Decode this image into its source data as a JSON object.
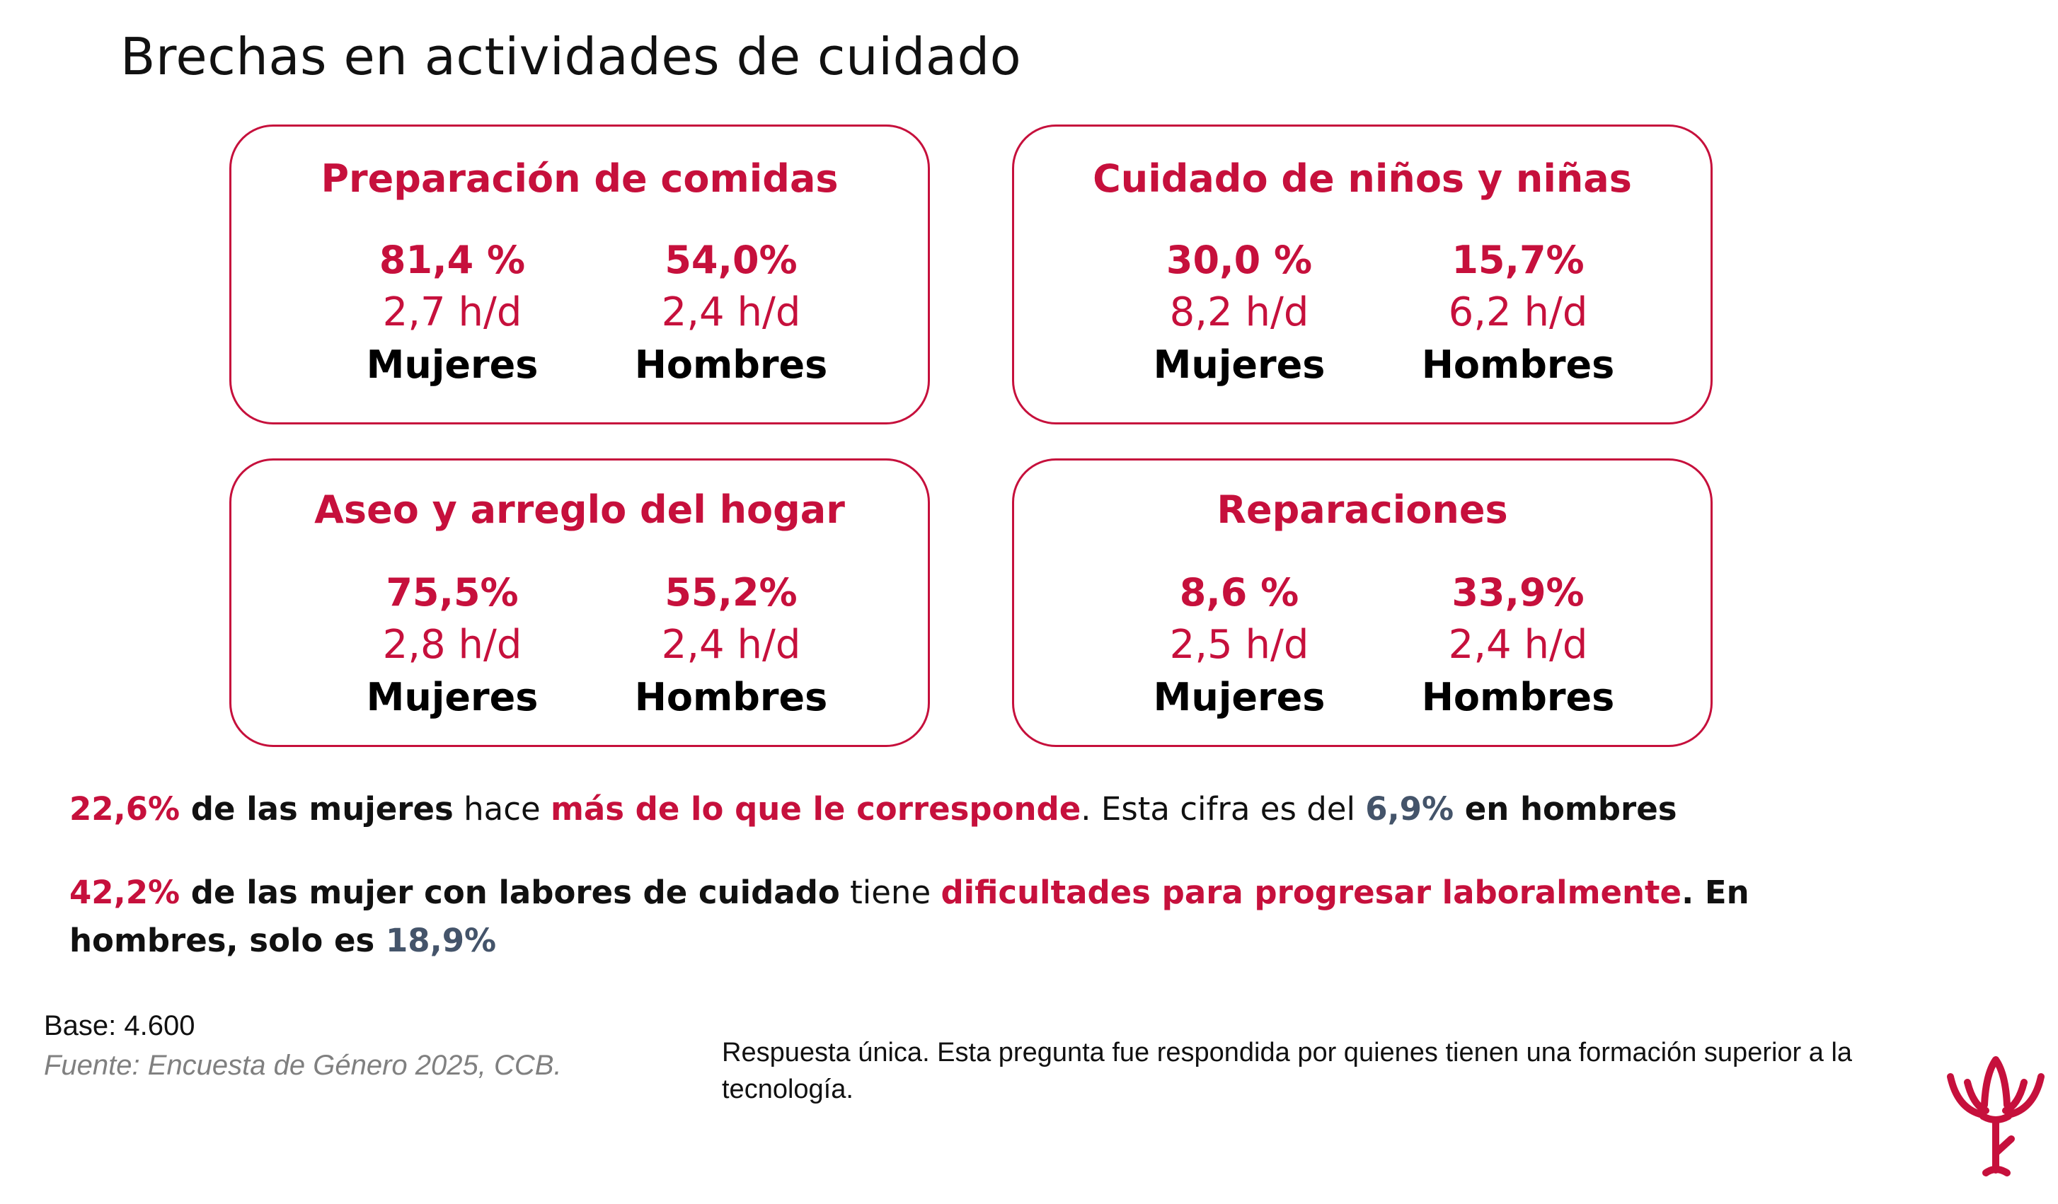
{
  "title": "Brechas en actividades de cuidado",
  "cards": [
    {
      "title": "Preparación de comidas",
      "women": {
        "pct": "81,4 %",
        "hours": "2,7 h/d",
        "label": "Mujeres"
      },
      "men": {
        "pct": "54,0%",
        "hours": "2,4 h/d",
        "label": "Hombres"
      }
    },
    {
      "title": "Cuidado de niños y niñas",
      "women": {
        "pct": "30,0 %",
        "hours": "8,2 h/d",
        "label": "Mujeres"
      },
      "men": {
        "pct": "15,7%",
        "hours": "6,2 h/d",
        "label": "Hombres"
      }
    },
    {
      "title": "Aseo y arreglo del hogar",
      "women": {
        "pct": "75,5%",
        "hours": "2,8 h/d",
        "label": "Mujeres"
      },
      "men": {
        "pct": "55,2%",
        "hours": "2,4 h/d",
        "label": "Hombres"
      }
    },
    {
      "title": "Reparaciones",
      "women": {
        "pct": "8,6 %",
        "hours": "2,5 h/d",
        "label": "Mujeres"
      },
      "men": {
        "pct": "33,9%",
        "hours": "2,4 h/d",
        "label": "Hombres"
      }
    }
  ],
  "statement1": {
    "pct": "22,6%",
    "subject": " de las mujeres",
    "verb": " hace ",
    "highlight": "más de lo que le corresponde",
    "mid": ". Esta cifra es del ",
    "men_pct": "6,9%",
    "tail": " en hombres"
  },
  "statement2": {
    "pct": "42,2%",
    "subject": " de las mujer con labores de cuidado",
    "verb": " tiene ",
    "highlight": "dificultades para progresar laboralmente",
    "tail": ". En hombres, solo es ",
    "men_pct": "18,9%"
  },
  "footer": {
    "base": "Base: 4.600",
    "source": "Fuente: Encuesta de Género 2025, CCB.",
    "note": "Respuesta única. Esta pregunta fue respondida por quienes tienen una formación superior a la tecnología."
  },
  "colors": {
    "accent": "#c6103c",
    "slate": "#44546a"
  },
  "logo_icon": "tulip-logo-icon"
}
